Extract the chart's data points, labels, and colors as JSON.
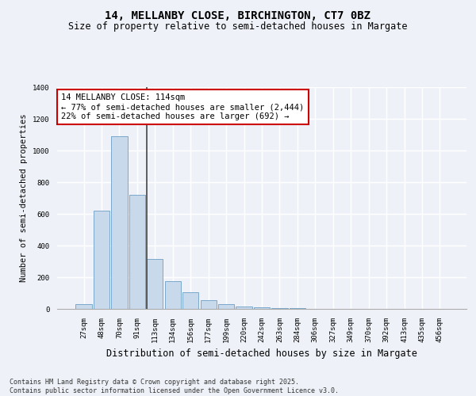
{
  "title1": "14, MELLANBY CLOSE, BIRCHINGTON, CT7 0BZ",
  "title2": "Size of property relative to semi-detached houses in Margate",
  "xlabel": "Distribution of semi-detached houses by size in Margate",
  "ylabel": "Number of semi-detached properties",
  "categories": [
    "27sqm",
    "48sqm",
    "70sqm",
    "91sqm",
    "113sqm",
    "134sqm",
    "156sqm",
    "177sqm",
    "199sqm",
    "220sqm",
    "242sqm",
    "263sqm",
    "284sqm",
    "306sqm",
    "327sqm",
    "349sqm",
    "370sqm",
    "392sqm",
    "413sqm",
    "435sqm",
    "456sqm"
  ],
  "values": [
    30,
    620,
    1090,
    720,
    315,
    175,
    105,
    55,
    30,
    15,
    10,
    5,
    3,
    0,
    0,
    0,
    0,
    0,
    0,
    0,
    0
  ],
  "bar_color": "#c9d9ec",
  "bar_edge_color": "#7aa8cc",
  "vline_index": 4,
  "vline_color": "#444444",
  "annotation_text": "14 MELLANBY CLOSE: 114sqm\n← 77% of semi-detached houses are smaller (2,444)\n22% of semi-detached houses are larger (692) →",
  "annotation_box_facecolor": "#ffffff",
  "annotation_box_edgecolor": "#cc0000",
  "ylim": [
    0,
    1400
  ],
  "yticks": [
    0,
    200,
    400,
    600,
    800,
    1000,
    1200,
    1400
  ],
  "background_color": "#eef2f8",
  "grid_color": "#ffffff",
  "footer_text": "Contains HM Land Registry data © Crown copyright and database right 2025.\nContains public sector information licensed under the Open Government Licence v3.0.",
  "title_fontsize": 10,
  "subtitle_fontsize": 8.5,
  "tick_fontsize": 6.5,
  "ylabel_fontsize": 7.5,
  "xlabel_fontsize": 8.5,
  "annotation_fontsize": 7.5,
  "footer_fontsize": 6
}
